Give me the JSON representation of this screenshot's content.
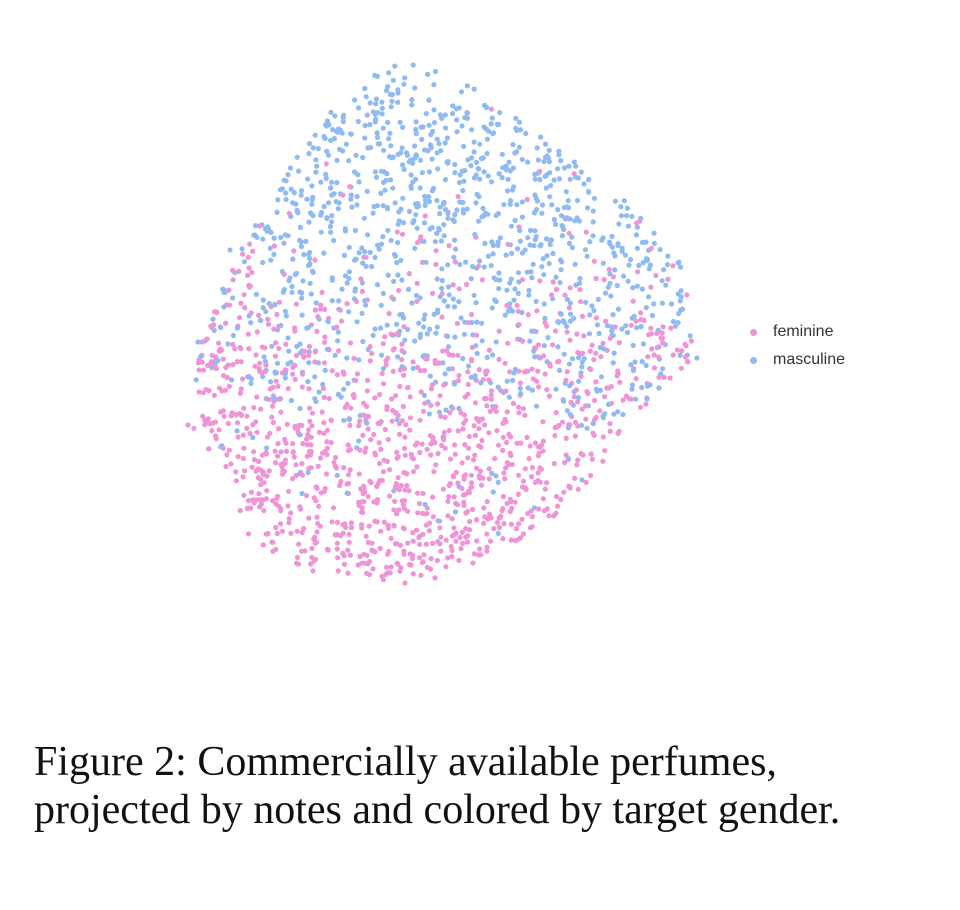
{
  "chart_data": {
    "type": "scatter",
    "title": "",
    "xlabel": "",
    "ylabel": "",
    "axes_visible": false,
    "grid": false,
    "legend_position": "right",
    "series": [
      {
        "name": "feminine",
        "color": "#ef94d6",
        "approx_count": 1200,
        "distribution": "concentrated in lower-left half of the cloud"
      },
      {
        "name": "masculine",
        "color": "#8fbaf2",
        "approx_count": 1100,
        "distribution": "concentrated in upper half of the cloud"
      }
    ]
  },
  "legend": {
    "items": [
      {
        "label": "feminine",
        "color": "#ef94d6"
      },
      {
        "label": "masculine",
        "color": "#8fbaf2"
      }
    ]
  },
  "caption": "Figure 2: Commercially available perfumes, projected by notes and colored by target gender."
}
